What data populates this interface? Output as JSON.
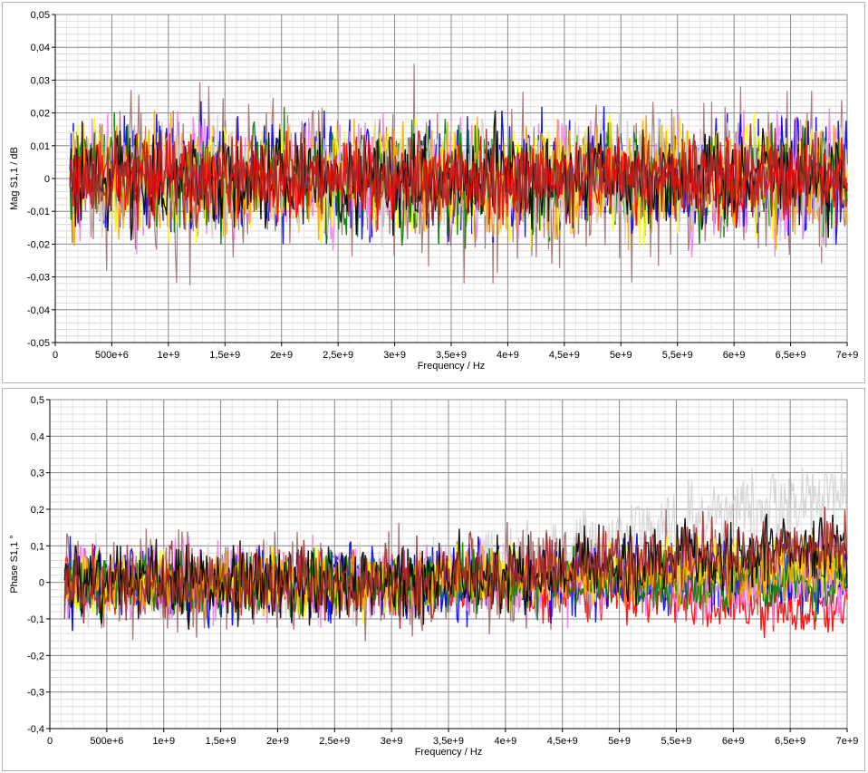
{
  "chart_data": [
    {
      "type": "line",
      "xlabel": "Frequency / Hz",
      "ylabel": "Mag S1,1 / dB",
      "xlim": [
        0,
        7000000000
      ],
      "ylim": [
        -0.05,
        0.05
      ],
      "x_ticks": [
        0,
        500000000,
        1000000000,
        1500000000,
        2000000000,
        2500000000,
        3000000000,
        3500000000,
        4000000000,
        4500000000,
        5000000000,
        5500000000,
        6000000000,
        6500000000,
        7000000000
      ],
      "x_tick_labels": [
        "0",
        "500e+6",
        "1e+9",
        "1,5e+9",
        "2e+9",
        "2,5e+9",
        "3e+9",
        "3,5e+9",
        "4e+9",
        "4,5e+9",
        "5e+9",
        "5,5e+9",
        "6e+9",
        "6,5e+9",
        "7e+9"
      ],
      "y_ticks": [
        -0.05,
        -0.04,
        -0.03,
        -0.02,
        -0.01,
        0,
        0.01,
        0.02,
        0.03,
        0.04,
        0.05
      ],
      "y_tick_labels": [
        "-0,05",
        "-0,04",
        "-0,03",
        "-0,02",
        "-0,01",
        "0",
        "0,01",
        "0,02",
        "0,03",
        "0,04",
        "0,05"
      ],
      "grid": true,
      "x_start": 130000000,
      "series": [
        {
          "color": "#a0706e",
          "center": 0.0,
          "spread": 0.012
        },
        {
          "color": "#0000ff",
          "center": 0.0,
          "spread": 0.009
        },
        {
          "color": "#ee82ee",
          "center": 0.0,
          "spread": 0.009
        },
        {
          "color": "#ffff00",
          "center": 0.0,
          "spread": 0.008
        },
        {
          "color": "#008000",
          "center": 0.0,
          "spread": 0.008
        },
        {
          "color": "#ffa500",
          "center": 0.0,
          "spread": 0.008
        },
        {
          "color": "#d3d3d3",
          "center": 0.0,
          "spread": 0.008
        },
        {
          "color": "#000000",
          "center": 0.0,
          "spread": 0.007
        },
        {
          "color": "#ff0000",
          "center": 0.0,
          "spread": 0.006
        },
        {
          "color": "#a52a2a",
          "center": 0.0,
          "spread": 0.006
        }
      ]
    },
    {
      "type": "line",
      "xlabel": "Frequency / Hz",
      "ylabel": "Phase S1,1 °",
      "xlim": [
        0,
        7000000000
      ],
      "ylim": [
        -0.4,
        0.5
      ],
      "x_ticks": [
        0,
        500000000,
        1000000000,
        1500000000,
        2000000000,
        2500000000,
        3000000000,
        3500000000,
        4000000000,
        4500000000,
        5000000000,
        5500000000,
        6000000000,
        6500000000,
        7000000000
      ],
      "x_tick_labels": [
        "0",
        "500e+6",
        "1e+9",
        "1,5e+9",
        "2e+9",
        "2,5e+9",
        "3e+9",
        "3,5e+9",
        "4e+9",
        "4,5e+9",
        "5e+9",
        "5,5e+9",
        "6e+9",
        "6,5e+9",
        "7e+9"
      ],
      "y_ticks": [
        -0.4,
        -0.3,
        -0.2,
        -0.1,
        0,
        0.1,
        0.2,
        0.3,
        0.4,
        0.5
      ],
      "y_tick_labels": [
        "-0,4",
        "-0,3",
        "-0,2",
        "-0,1",
        "0",
        "0,1",
        "0,2",
        "0,3",
        "0,4",
        "0,5"
      ],
      "grid": true,
      "x_start": 130000000,
      "series": [
        {
          "color": "#d3d3d3",
          "center_start": 0.0,
          "center_end": 0.25,
          "trend_start": 3000000000,
          "spread": 0.05
        },
        {
          "color": "#ff0000",
          "center_start": 0.0,
          "center_end": -0.08,
          "trend_start": 3000000000,
          "spread": 0.04
        },
        {
          "color": "#a0706e",
          "center_start": 0.0,
          "center_end": 0.05,
          "trend_start": 3000000000,
          "spread": 0.06
        },
        {
          "color": "#0000ff",
          "center_start": 0.0,
          "center_end": 0.02,
          "trend_start": 3000000000,
          "spread": 0.05
        },
        {
          "color": "#ee82ee",
          "center_start": 0.0,
          "center_end": 0.0,
          "trend_start": 3000000000,
          "spread": 0.05
        },
        {
          "color": "#ffff00",
          "center_start": 0.0,
          "center_end": 0.05,
          "trend_start": 3000000000,
          "spread": 0.04
        },
        {
          "color": "#008000",
          "center_start": 0.0,
          "center_end": 0.0,
          "trend_start": 3000000000,
          "spread": 0.04
        },
        {
          "color": "#ffa500",
          "center_start": 0.0,
          "center_end": 0.04,
          "trend_start": 3000000000,
          "spread": 0.04
        },
        {
          "color": "#000000",
          "center_start": 0.0,
          "center_end": 0.1,
          "trend_start": 3000000000,
          "spread": 0.05
        },
        {
          "color": "#a52a2a",
          "center_start": 0.0,
          "center_end": 0.1,
          "trend_start": 3000000000,
          "spread": 0.05
        }
      ]
    }
  ]
}
